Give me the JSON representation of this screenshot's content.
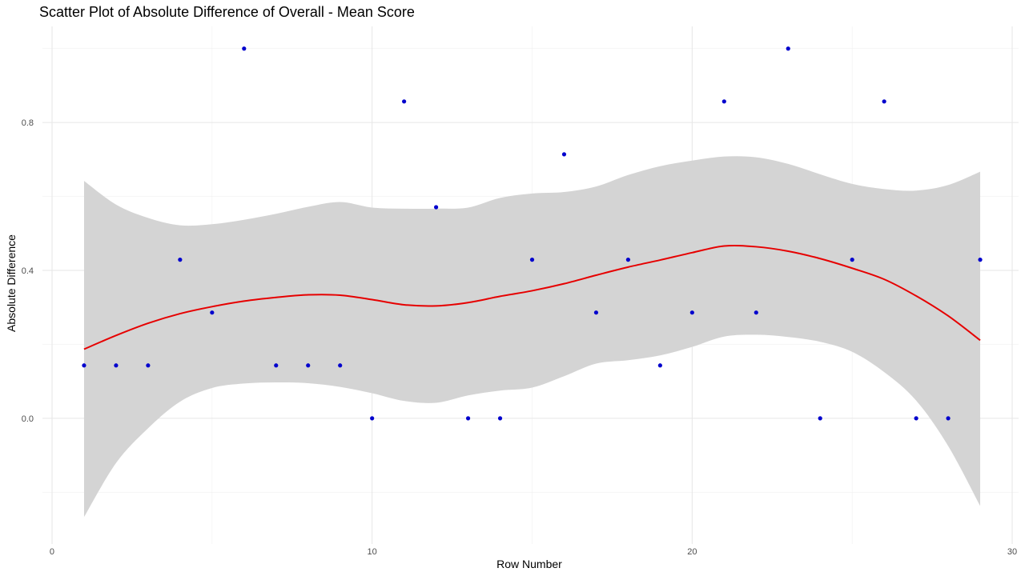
{
  "chart_data": {
    "type": "scatter",
    "title": "Scatter Plot of Absolute Difference of Overall - Mean Score",
    "xlabel": "Row Number",
    "ylabel": "Absolute Difference",
    "xlim": [
      -0.3,
      30.2
    ],
    "ylim": [
      -0.34,
      1.06
    ],
    "x_ticks": [
      0,
      10,
      20,
      30
    ],
    "x_tick_labels": [
      "0",
      "10",
      "20",
      "30"
    ],
    "y_ticks": [
      0.0,
      0.4,
      0.8
    ],
    "y_tick_labels": [
      "0.0",
      "0.4",
      "0.8"
    ],
    "grid": true,
    "legend": "none",
    "series": [
      {
        "type": "points",
        "color": "#0000cd",
        "x": [
          1,
          2,
          3,
          4,
          5,
          6,
          7,
          8,
          9,
          10,
          11,
          12,
          13,
          14,
          15,
          16,
          17,
          18,
          19,
          20,
          21,
          22,
          23,
          24,
          25,
          26,
          27,
          28,
          29
        ],
        "y": [
          0.143,
          0.143,
          0.143,
          0.429,
          0.286,
          1.0,
          0.143,
          0.143,
          0.143,
          0.0,
          0.857,
          0.571,
          0.0,
          0.0,
          0.429,
          0.714,
          0.286,
          0.429,
          0.143,
          0.286,
          0.857,
          0.286,
          1.0,
          0.0,
          0.429,
          0.857,
          0.0,
          0.0,
          0.429
        ]
      },
      {
        "type": "smooth",
        "color": "#e60000",
        "band_color": "#d4d4d4",
        "x": [
          1,
          2,
          3,
          4,
          5,
          6,
          7,
          8,
          9,
          10,
          11,
          12,
          13,
          14,
          15,
          16,
          17,
          18,
          19,
          20,
          21,
          22,
          23,
          24,
          25,
          26,
          27,
          28,
          29
        ],
        "y": [
          0.187,
          0.224,
          0.257,
          0.283,
          0.302,
          0.317,
          0.327,
          0.334,
          0.333,
          0.321,
          0.307,
          0.304,
          0.313,
          0.33,
          0.345,
          0.364,
          0.387,
          0.409,
          0.428,
          0.448,
          0.466,
          0.464,
          0.452,
          0.432,
          0.406,
          0.376,
          0.331,
          0.277,
          0.211
        ],
        "lower": [
          -0.267,
          -0.121,
          -0.027,
          0.045,
          0.082,
          0.094,
          0.097,
          0.095,
          0.085,
          0.068,
          0.047,
          0.042,
          0.062,
          0.075,
          0.083,
          0.114,
          0.148,
          0.157,
          0.17,
          0.193,
          0.221,
          0.226,
          0.22,
          0.207,
          0.18,
          0.125,
          0.048,
          -0.075,
          -0.237
        ],
        "upper": [
          0.642,
          0.578,
          0.542,
          0.522,
          0.525,
          0.537,
          0.553,
          0.572,
          0.585,
          0.57,
          0.567,
          0.567,
          0.57,
          0.596,
          0.608,
          0.612,
          0.627,
          0.658,
          0.682,
          0.697,
          0.708,
          0.706,
          0.688,
          0.66,
          0.634,
          0.62,
          0.616,
          0.631,
          0.667
        ]
      }
    ]
  }
}
